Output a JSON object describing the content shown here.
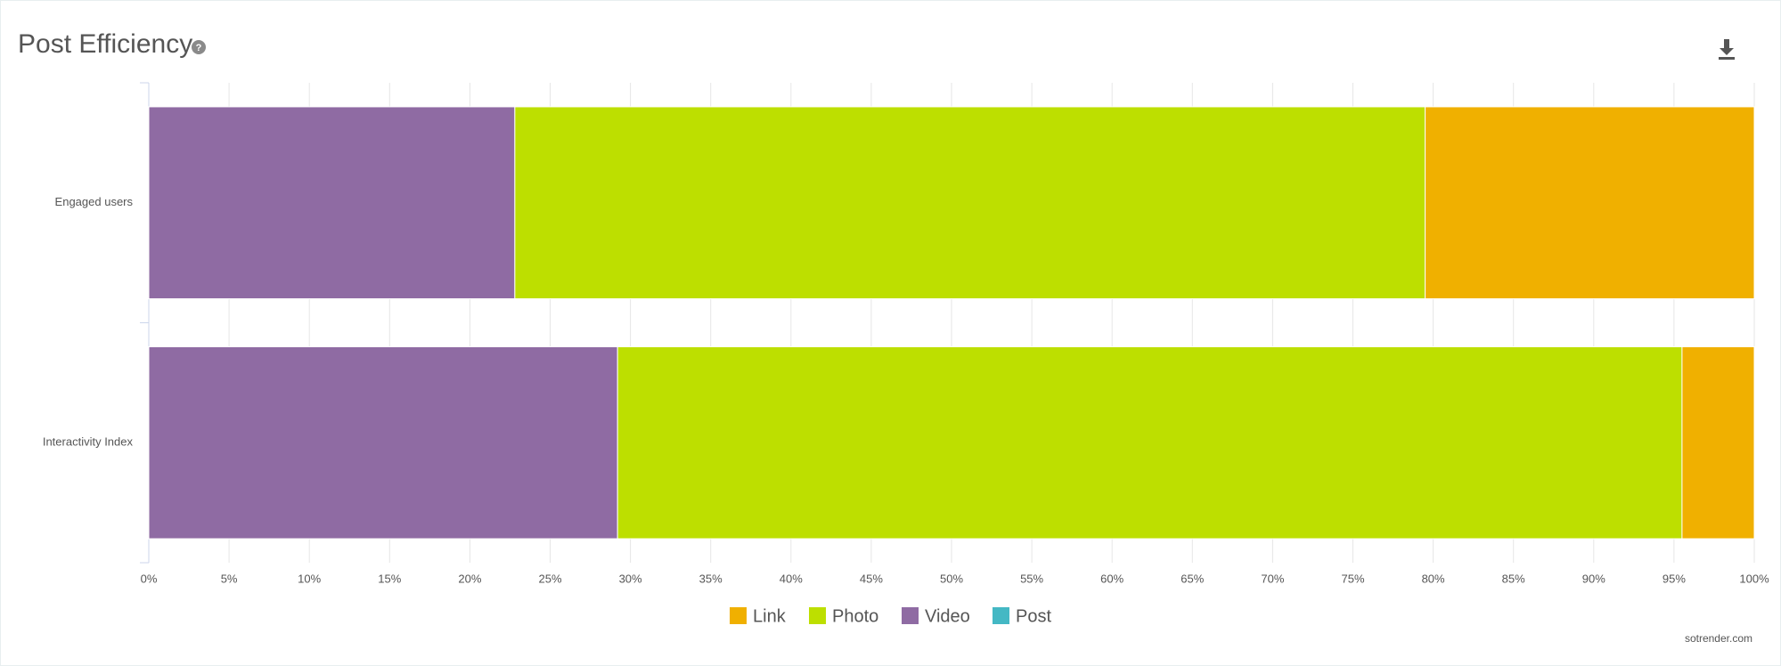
{
  "chart_data": {
    "type": "bar",
    "orientation": "horizontal",
    "stacking": "percent",
    "title": "Post Efficiency",
    "source": "sotrender.com",
    "categories": [
      "Engaged users",
      "Interactivity Index"
    ],
    "series": [
      {
        "name": "Link",
        "color": "#f0b000",
        "values": [
          20.5,
          4.5
        ]
      },
      {
        "name": "Photo",
        "color": "#bddf00",
        "values": [
          56.7,
          66.3
        ]
      },
      {
        "name": "Video",
        "color": "#8f6ba3",
        "values": [
          22.8,
          29.2
        ]
      },
      {
        "name": "Post",
        "color": "#44b8c4",
        "values": [
          0,
          0
        ]
      }
    ],
    "xlim": [
      0,
      100
    ],
    "xticks": [
      {
        "value": 0,
        "label": "0%"
      },
      {
        "value": 5,
        "label": "5%"
      },
      {
        "value": 10,
        "label": "10%"
      },
      {
        "value": 15,
        "label": "15%"
      },
      {
        "value": 20,
        "label": "20%"
      },
      {
        "value": 25,
        "label": "25%"
      },
      {
        "value": 30,
        "label": "30%"
      },
      {
        "value": 35,
        "label": "35%"
      },
      {
        "value": 40,
        "label": "40%"
      },
      {
        "value": 45,
        "label": "45%"
      },
      {
        "value": 50,
        "label": "50%"
      },
      {
        "value": 55,
        "label": "55%"
      },
      {
        "value": 60,
        "label": "60%"
      },
      {
        "value": 65,
        "label": "65%"
      },
      {
        "value": 70,
        "label": "70%"
      },
      {
        "value": 75,
        "label": "75%"
      },
      {
        "value": 80,
        "label": "80%"
      },
      {
        "value": 85,
        "label": "85%"
      },
      {
        "value": 90,
        "label": "90%"
      },
      {
        "value": 95,
        "label": "95%"
      },
      {
        "value": 100,
        "label": "100%"
      }
    ],
    "grid": true
  }
}
